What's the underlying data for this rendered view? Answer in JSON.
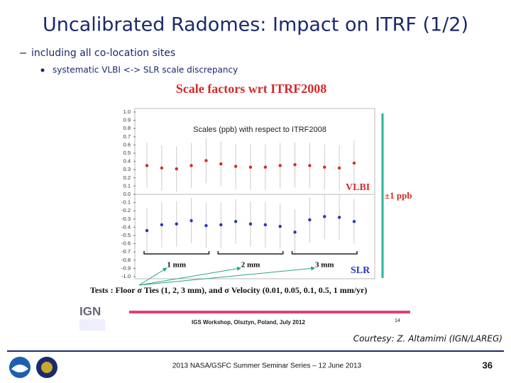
{
  "slide": {
    "title": "Uncalibrated Radomes: Impact on ITRF (1/2)",
    "bullet": "including all co-location sites",
    "sub_bullet": "systematic VLBI <-> SLR scale discrepancy",
    "courtesy": "Courtesy: Z. Altamimi (IGN/LAREG)",
    "footer": "2013 NASA/GSFC Summer Seminar Series – 12 June 2013",
    "page_number": 36
  },
  "chart_data": {
    "type": "scatter",
    "title": "Scale factors wrt ITRF2008",
    "subtitle": "Scales (ppb) with respect to ITRF2008",
    "categories": [
      null,
      null,
      null,
      null,
      null,
      null,
      null,
      null,
      null,
      null,
      null,
      null,
      null,
      null,
      null
    ],
    "series": [
      {
        "name": "VLBI",
        "color": "#d42a2a",
        "values": [
          0.35,
          0.32,
          0.31,
          0.35,
          0.41,
          0.37,
          0.34,
          0.33,
          0.33,
          0.35,
          0.36,
          0.35,
          0.33,
          0.32,
          0.38
        ]
      },
      {
        "name": "SLR",
        "color": "#2a36b8",
        "values": [
          -0.44,
          -0.37,
          -0.36,
          -0.32,
          -0.38,
          -0.37,
          -0.33,
          -0.36,
          -0.37,
          -0.39,
          -0.46,
          -0.31,
          -0.27,
          -0.28,
          -0.33
        ]
      }
    ],
    "ylim": [
      -1,
      1
    ],
    "yticks": [
      {
        "value": 1,
        "label": "1.0"
      },
      0.9,
      0.8,
      0.7,
      0.6,
      0.5,
      0.4,
      0.3,
      0.2,
      0.1,
      {
        "value": 0,
        "label": "0.0"
      },
      -0.1,
      -0.2,
      -0.3,
      -0.4,
      -0.5,
      -0.6,
      -0.7,
      -0.8,
      -0.9,
      {
        "value": -1,
        "label": "-1.0"
      }
    ],
    "annotations": {
      "range": "±1 ppb",
      "groups": [
        "1 mm",
        "2 mm",
        "3 mm"
      ],
      "tests": "Tests : Floor σ Ties (1, 2, 3 mm), and σ Velocity (0.01, 0.05, 0.1, 0.5, 1 mm/yr)",
      "logo": "IGN",
      "workshop": "IGS Workshop, Olsztyn, Poland, July 2012",
      "page": 14
    }
  }
}
